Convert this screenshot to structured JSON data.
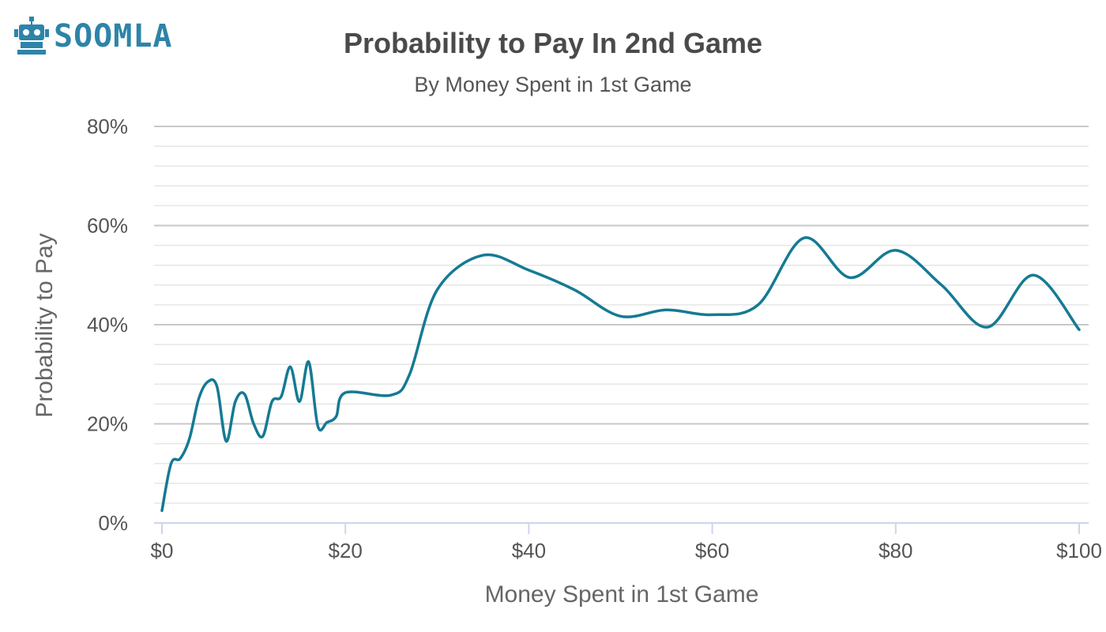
{
  "brand": {
    "name": "SOOMLA"
  },
  "colors": {
    "line": "#157a93",
    "grid_major": "#c8c8c8",
    "grid_minor": "#e6e6e6",
    "axis": "#ccd6eb",
    "logo": "#2d84a8"
  },
  "chart_data": {
    "type": "line",
    "title": "Probability to Pay In 2nd Game",
    "subtitle": "By Money Spent in 1st Game",
    "xlabel": "Money Spent in 1st Game",
    "ylabel": "Probability to Pay",
    "xlim": [
      0,
      101
    ],
    "ylim": [
      0,
      80
    ],
    "x_ticks": [
      {
        "value": 0,
        "label": "$0"
      },
      {
        "value": 20,
        "label": "$20"
      },
      {
        "value": 40,
        "label": "$40"
      },
      {
        "value": 60,
        "label": "$60"
      },
      {
        "value": 80,
        "label": "$80"
      },
      {
        "value": 100,
        "label": "$100"
      }
    ],
    "y_ticks": [
      {
        "value": 0,
        "label": "0%"
      },
      {
        "value": 20,
        "label": "20%"
      },
      {
        "value": 40,
        "label": "40%"
      },
      {
        "value": 60,
        "label": "60%"
      },
      {
        "value": 80,
        "label": "80%"
      }
    ],
    "grid": true,
    "legend": "none",
    "series": [
      {
        "x": [
          0,
          1,
          2,
          3,
          4,
          5,
          6,
          7,
          8,
          9,
          10,
          11,
          12,
          13,
          14,
          15,
          16,
          17,
          18,
          19,
          20,
          25,
          27,
          30,
          35,
          40,
          45,
          50,
          55,
          60,
          65,
          70,
          75,
          80,
          85,
          90,
          95,
          100
        ],
        "y": [
          2.5,
          12,
          13,
          17,
          25,
          28.5,
          27.5,
          16.5,
          24.5,
          26,
          20,
          17.5,
          24.5,
          25.5,
          31.5,
          24.5,
          32.5,
          19.5,
          20.3,
          21.5,
          26.3,
          25.8,
          30,
          47,
          54,
          51,
          47,
          41.7,
          43,
          42,
          44,
          57.5,
          49.5,
          55,
          48,
          39.5,
          50,
          39
        ]
      }
    ]
  }
}
